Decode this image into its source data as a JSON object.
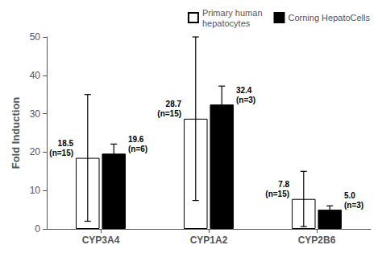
{
  "chart_data": {
    "type": "bar",
    "categories": [
      "CYP3A4",
      "CYP1A2",
      "CYP2B6"
    ],
    "series": [
      {
        "name": "Primary human\nhepatocytes",
        "color": "#FFFFFF",
        "values": [
          18.5,
          28.7,
          7.8
        ],
        "errors": [
          16.5,
          21.3,
          7.2
        ],
        "value_labels": [
          "18.5\n(n=15)",
          "28.7\n(n=15)",
          "7.8\n(n=15)"
        ]
      },
      {
        "name": "Corning HepatoCells",
        "color": "#000000",
        "values": [
          19.6,
          32.4,
          5.0
        ],
        "errors": [
          2.5,
          4.8,
          1.0
        ],
        "value_labels": [
          "19.6\n(n=6)",
          "32.4\n(n=3)",
          "5.0\n(n=3)"
        ]
      }
    ],
    "ylabel": "Fold Induction",
    "ylim": [
      0,
      50
    ],
    "yticks": [
      0,
      10,
      20,
      30,
      40,
      50
    ],
    "grid": false,
    "legend": "upper right"
  }
}
